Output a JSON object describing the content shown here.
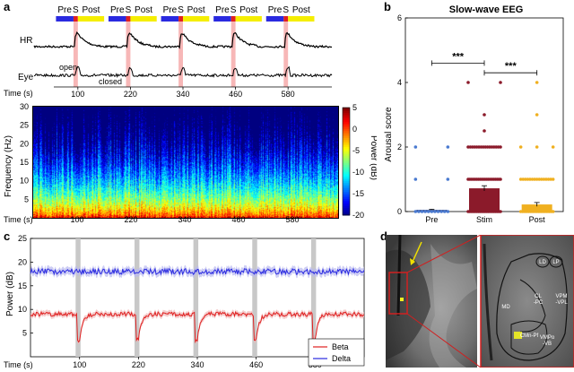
{
  "panel_labels": {
    "a": "a",
    "b": "b",
    "c": "c",
    "d": "d"
  },
  "colors": {
    "pre": "#2a2ae0",
    "stim": "#e02020",
    "post": "#f5ee00",
    "stim_shade": "#f7b7b7",
    "beta": "#e02020",
    "delta": "#2a2ae0",
    "stim_bar": "#8b1a2a",
    "post_bar": "#f0b020",
    "pre_bar": "#1a2a6a"
  },
  "panel_a": {
    "phase_labels": [
      "Pre",
      "S",
      "Post",
      "Pre",
      "S",
      "Post",
      "Pre",
      "S",
      "Post",
      "Pre",
      "S",
      "Post",
      "Pre",
      "S",
      "Post"
    ],
    "hr_label": "HR",
    "eye_label": "Eye",
    "eye_open": "open",
    "eye_closed": "closed",
    "time_label": "Time (s)",
    "time_ticks": [
      "100",
      "220",
      "340",
      "460",
      "580"
    ],
    "spec_ylabel": "Frequency (Hz)",
    "spec_yticks": [
      "30",
      "25",
      "20",
      "15",
      "10",
      "5"
    ],
    "spec_time_label": "Time (s)",
    "colorbar_label": "Power (dB)",
    "colorbar_ticks": [
      "5",
      "0",
      "-5",
      "-10",
      "-15",
      "-20"
    ]
  },
  "chart_data": [
    {
      "type": "bar",
      "title": "Slow-wave EEG",
      "xlabel": "",
      "ylabel": "Arousal score",
      "categories": [
        "Pre",
        "Stim",
        "Post"
      ],
      "values": [
        0.05,
        0.72,
        0.22
      ],
      "errors": [
        0.02,
        0.08,
        0.06
      ],
      "ylim": [
        0,
        6
      ],
      "yticks": [
        "0",
        "2",
        "4",
        "6"
      ],
      "significance": [
        {
          "pair": [
            "Pre",
            "Stim"
          ],
          "label": "***"
        },
        {
          "pair": [
            "Stim",
            "Post"
          ],
          "label": "***"
        }
      ],
      "dots": {
        "Pre": [
          2,
          2,
          1,
          1,
          0,
          0,
          0,
          0,
          0,
          0,
          0,
          0,
          0,
          0,
          0
        ],
        "Stim": [
          4,
          4,
          3,
          2.5,
          2,
          2,
          2,
          2,
          2,
          2,
          2,
          2,
          2,
          2,
          2,
          2,
          2,
          2,
          2,
          2,
          1,
          1,
          1,
          1,
          1,
          1,
          1,
          1,
          1,
          1,
          1,
          1,
          1,
          1,
          1,
          1,
          1,
          1,
          1,
          1,
          0,
          0,
          0,
          0,
          0,
          0,
          0,
          0,
          0,
          0,
          0,
          0,
          0,
          0,
          0,
          0,
          0,
          0,
          0,
          0
        ],
        "Post": [
          4,
          3,
          2,
          2,
          2,
          1,
          1,
          1,
          1,
          1,
          1,
          1,
          1,
          1,
          1,
          1,
          1,
          1,
          1,
          1,
          0,
          0,
          0,
          0,
          0,
          0,
          0,
          0,
          0,
          0,
          0,
          0,
          0,
          0,
          0,
          0,
          0
        ]
      }
    },
    {
      "type": "line",
      "xlabel": "Time (s)",
      "ylabel": "Power (dB)",
      "x_ticks": [
        "100",
        "220",
        "340",
        "460",
        "580"
      ],
      "ylim": [
        0,
        25
      ],
      "yticks": [
        "25",
        "20",
        "15",
        "10",
        "5"
      ],
      "series": [
        {
          "name": "Beta",
          "level": 9
        },
        {
          "name": "Delta",
          "level": 18
        }
      ],
      "stim_times": [
        100,
        220,
        340,
        460,
        580
      ]
    }
  ],
  "panel_d": {
    "labels": [
      "LD",
      "LP",
      "MD",
      "CL\n-PC",
      "VPM\n-VPL",
      "CMn-Pf",
      "VMPo\n-VB"
    ]
  }
}
